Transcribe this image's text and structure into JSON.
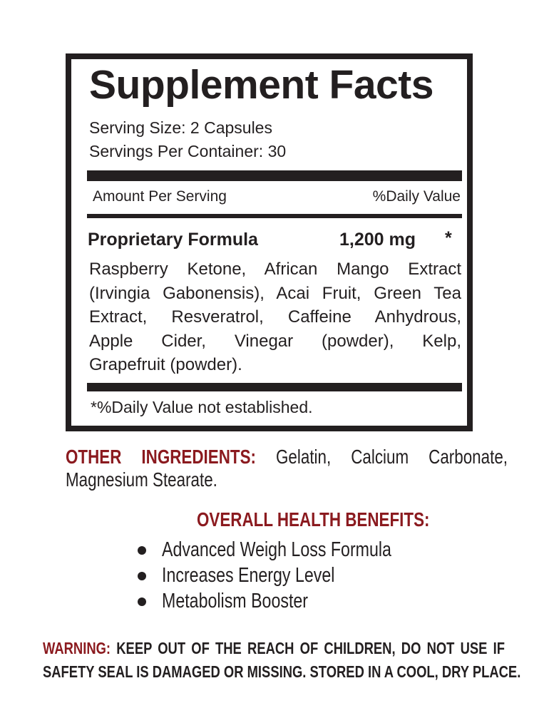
{
  "facts": {
    "title": "Supplement Facts",
    "serving_size": "Serving Size: 2 Capsules",
    "servings_per_container": "Servings Per Container: 30",
    "amount_per_serving": "Amount Per Serving",
    "daily_value_header": "%Daily Value",
    "formula_name": "Proprietary Formula",
    "formula_amount": "1,200 mg",
    "formula_dv": "*",
    "ingredients_lines": [
      "Raspberry Ketone, African Mango Extract",
      "(Irvingia Gabonensis), Acai Fruit, Green Tea",
      "Extract, Resveratrol, Caffeine Anhydrous,",
      "Apple Cider, Vinegar (powder), Kelp,",
      "Grapefruit (powder)."
    ],
    "footnote": "*%Daily Value not established."
  },
  "other_ingredients": {
    "label": "OTHER INGREDIENTS:",
    "line1": "Gelatin, Calcium Carbonate,",
    "line2": "Magnesium Stearate."
  },
  "benefits": {
    "heading": "OVERALL HEALTH BENEFITS:",
    "items": [
      "Advanced Weigh Loss Formula",
      "Increases Energy Level",
      "Metabolism Booster"
    ]
  },
  "warning": {
    "label": "WARNING:",
    "line1": "KEEP OUT OF THE REACH OF CHILDREN, DO NOT USE IF",
    "line2": "SAFETY SEAL IS DAMAGED OR MISSING. STORED IN A COOL, DRY PLACE."
  },
  "colors": {
    "text": "#231f20",
    "accent": "#8b1a1f"
  }
}
